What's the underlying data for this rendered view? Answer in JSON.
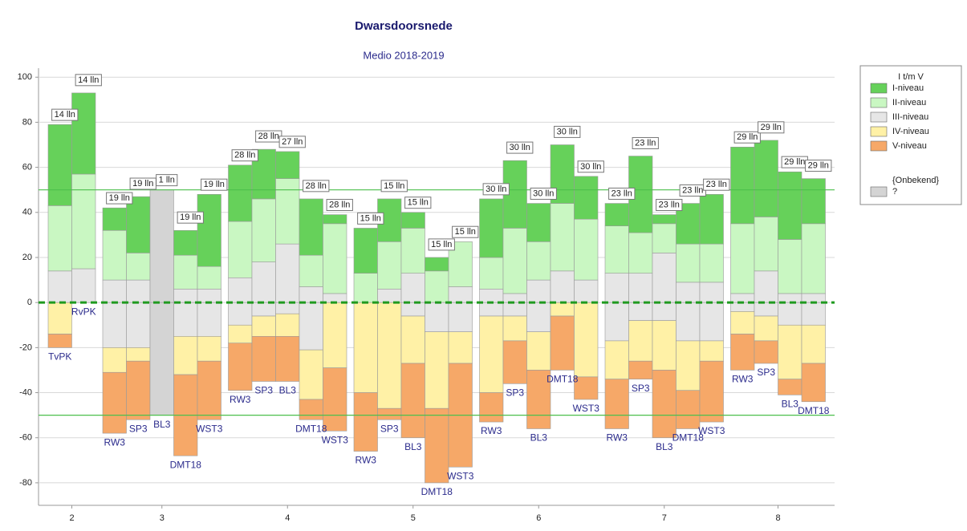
{
  "chart_data": {
    "type": "diverging-stacked-bar",
    "title": "Dwarsdoorsnede",
    "subtitle": "Medio 2018-2019",
    "legend_title": "I t/m V",
    "legend_subtitle": "{Onbekend}",
    "legend": "right",
    "grid": true,
    "series": [
      {
        "name": "I-niveau",
        "color": "#66d15a"
      },
      {
        "name": "II-niveau",
        "color": "#c9f7c2"
      },
      {
        "name": "III-niveau",
        "color": "#e6e6e6"
      },
      {
        "name": "IV-niveau",
        "color": "#fff1a6"
      },
      {
        "name": "V-niveau",
        "color": "#f6a868"
      },
      {
        "name": "?",
        "color": "#d4d4d4"
      }
    ],
    "ylim": [
      -90,
      104
    ],
    "yticks": [
      -80,
      -60,
      -40,
      -20,
      0,
      20,
      40,
      60,
      80,
      100
    ],
    "hlines": [
      {
        "value": 50,
        "style": "solid"
      },
      {
        "value": -50,
        "style": "solid"
      },
      {
        "value": 0,
        "style": "dashed"
      }
    ],
    "groups": [
      {
        "label": "2",
        "bars": [
          {
            "label": "TvPK",
            "count": "14 lln",
            "above": [
              36,
              29,
              14,
              null,
              null,
              null
            ],
            "below": [
              null,
              null,
              null,
              -14,
              -6,
              null
            ]
          },
          {
            "label": "RvPK",
            "count": "14 lln",
            "above": [
              36,
              42,
              15,
              null,
              null,
              null
            ],
            "below": [
              null,
              null,
              null,
              null,
              null,
              null
            ]
          }
        ]
      },
      {
        "label": "3",
        "bars": [
          {
            "label": "RW3",
            "count": "19 lln",
            "above": [
              10,
              22,
              10,
              null,
              null,
              null
            ],
            "below": [
              null,
              null,
              -20,
              -11,
              -27,
              null
            ]
          },
          {
            "label": "SP3",
            "count": "19 lln",
            "above": [
              25,
              12,
              10,
              null,
              null,
              null
            ],
            "below": [
              null,
              null,
              -20,
              -6,
              -26,
              null
            ]
          },
          {
            "label": "BL3",
            "count": "1 lln",
            "above": [
              null,
              null,
              null,
              null,
              null,
              50
            ],
            "below": [
              null,
              null,
              null,
              null,
              null,
              -50
            ]
          },
          {
            "label": "DMT18",
            "count": "19 lln",
            "above": [
              11,
              15,
              6,
              null,
              null,
              null
            ],
            "below": [
              null,
              null,
              -15,
              -17,
              -36,
              null
            ]
          },
          {
            "label": "WST3",
            "count": "19 lln",
            "above": [
              32,
              10,
              6,
              null,
              null,
              null
            ],
            "below": [
              null,
              null,
              -15,
              -11,
              -26,
              null
            ]
          }
        ]
      },
      {
        "label": "4",
        "bars": [
          {
            "label": "RW3",
            "count": "28 lln",
            "above": [
              25,
              25,
              11,
              null,
              null,
              null
            ],
            "below": [
              null,
              null,
              -10,
              -8,
              -21,
              null
            ]
          },
          {
            "label": "SP3",
            "count": "28 lln",
            "above": [
              22,
              28,
              18,
              null,
              null,
              null
            ],
            "below": [
              null,
              null,
              -6,
              -9,
              -20,
              null
            ]
          },
          {
            "label": "BL3",
            "count": "27 lln",
            "above": [
              12,
              29,
              26,
              null,
              null,
              null
            ],
            "below": [
              null,
              null,
              -5,
              -10,
              -20,
              null
            ]
          },
          {
            "label": "DMT18",
            "count": "28 lln",
            "above": [
              25,
              14,
              7,
              null,
              null,
              null
            ],
            "below": [
              null,
              null,
              -21,
              -22,
              -9,
              null
            ]
          },
          {
            "label": "WST3",
            "count": "28 lln",
            "above": [
              4,
              31,
              4,
              null,
              null,
              null
            ],
            "below": [
              null,
              null,
              null,
              -29,
              -28,
              null
            ]
          }
        ]
      },
      {
        "label": "5",
        "bars": [
          {
            "label": "RW3",
            "count": "15 lln",
            "above": [
              20,
              13,
              null,
              null,
              null,
              null
            ],
            "below": [
              null,
              null,
              null,
              -40,
              -26,
              null
            ]
          },
          {
            "label": "SP3",
            "count": "15 lln",
            "above": [
              19,
              21,
              6,
              null,
              null,
              null
            ],
            "below": [
              null,
              null,
              null,
              -47,
              -5,
              null
            ]
          },
          {
            "label": "BL3",
            "count": "15 lln",
            "above": [
              7,
              20,
              13,
              null,
              null,
              null
            ],
            "below": [
              null,
              null,
              -6,
              -21,
              -33,
              null
            ]
          },
          {
            "label": "DMT18",
            "count": "15 lln",
            "above": [
              6,
              14,
              null,
              null,
              null,
              null
            ],
            "below": [
              null,
              null,
              -13,
              -34,
              -33,
              null
            ]
          },
          {
            "label": "WST3",
            "count": "15 lln",
            "above": [
              null,
              20,
              7,
              null,
              null,
              null
            ],
            "below": [
              null,
              null,
              -13,
              -14,
              -46,
              null
            ]
          }
        ]
      },
      {
        "label": "6",
        "bars": [
          {
            "label": "RW3",
            "count": "30 lln",
            "above": [
              26,
              14,
              6,
              null,
              null,
              null
            ],
            "below": [
              null,
              null,
              -6,
              -34,
              -13,
              null
            ]
          },
          {
            "label": "SP3",
            "count": "30 lln",
            "above": [
              30,
              29,
              4,
              null,
              null,
              null
            ],
            "below": [
              null,
              null,
              -6,
              -11,
              -19,
              null
            ]
          },
          {
            "label": "BL3",
            "count": "30 lln",
            "above": [
              17,
              17,
              10,
              null,
              null,
              null
            ],
            "below": [
              null,
              null,
              -13,
              -17,
              -26,
              null
            ]
          },
          {
            "label": "DMT18",
            "count": "30 lln",
            "above": [
              26,
              30,
              14,
              null,
              null,
              null
            ],
            "below": [
              null,
              null,
              null,
              -6,
              -24,
              null
            ]
          },
          {
            "label": "WST3",
            "count": "30 lln",
            "above": [
              19,
              27,
              10,
              null,
              null,
              null
            ],
            "below": [
              null,
              null,
              null,
              -33,
              -10,
              null
            ]
          }
        ]
      },
      {
        "label": "7",
        "bars": [
          {
            "label": "RW3",
            "count": "23 lln",
            "above": [
              10,
              21,
              13,
              null,
              null,
              null
            ],
            "below": [
              null,
              null,
              -17,
              -17,
              -22,
              null
            ]
          },
          {
            "label": "SP3",
            "count": "23 lln",
            "above": [
              34,
              18,
              13,
              null,
              null,
              null
            ],
            "below": [
              null,
              null,
              -8,
              -18,
              -8,
              null
            ]
          },
          {
            "label": "BL3",
            "count": "23 lln",
            "above": [
              4,
              13,
              22,
              null,
              null,
              null
            ],
            "below": [
              null,
              null,
              -8,
              -22,
              -30,
              null
            ]
          },
          {
            "label": "DMT18",
            "count": "23 lln",
            "above": [
              18,
              17,
              9,
              null,
              null,
              null
            ],
            "below": [
              null,
              null,
              -17,
              -22,
              -17,
              null
            ]
          },
          {
            "label": "WST3",
            "count": "23 lln",
            "above": [
              22,
              17,
              9,
              null,
              null,
              null
            ],
            "below": [
              null,
              null,
              -17,
              -9,
              -27,
              null
            ]
          }
        ]
      },
      {
        "label": "8",
        "bars": [
          {
            "label": "RW3",
            "count": "29 lln",
            "above": [
              34,
              31,
              4,
              null,
              null,
              null
            ],
            "below": [
              null,
              null,
              -4,
              -10,
              -16,
              null
            ]
          },
          {
            "label": "SP3",
            "count": "29 lln",
            "above": [
              34,
              24,
              14,
              null,
              null,
              null
            ],
            "below": [
              null,
              null,
              -6,
              -11,
              -10,
              null
            ]
          },
          {
            "label": "BL3",
            "count": "29 lln",
            "above": [
              30,
              24,
              4,
              null,
              null,
              null
            ],
            "below": [
              null,
              null,
              -10,
              -24,
              -7,
              null
            ]
          },
          {
            "label": "DMT18",
            "count": "29 lln",
            "above": [
              20,
              31,
              4,
              null,
              null,
              null
            ],
            "below": [
              null,
              null,
              -10,
              -17,
              -17,
              null
            ]
          }
        ]
      }
    ]
  }
}
